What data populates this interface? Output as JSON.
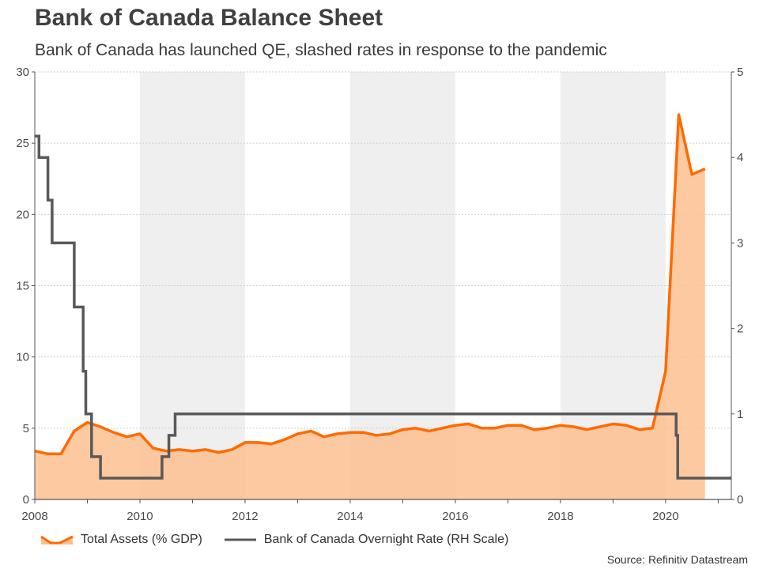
{
  "title": "Bank of Canada Balance Sheet",
  "subtitle": "Bank of Canada has launched QE, slashed rates in response to the pandemic",
  "source": "Source: Refinitiv Datastream",
  "colors": {
    "assets_line": "#ff6a00",
    "assets_fill": "#fdbf91",
    "rate_line": "#595959",
    "shade": "#efefef",
    "grid": "#cfcfcf"
  },
  "chart_data": {
    "type": "area",
    "title": "Bank of Canada Balance Sheet",
    "xlim": [
      2008,
      2021.25
    ],
    "ylim_left": [
      0,
      30
    ],
    "ylim_right": [
      0,
      5
    ],
    "x_ticks": [
      "2008",
      "2010",
      "2012",
      "2014",
      "2016",
      "2018",
      "2020"
    ],
    "y_ticks_left": [
      "0",
      "5",
      "10",
      "15",
      "20",
      "25",
      "30"
    ],
    "y_ticks_right": [
      "0",
      "1",
      "2",
      "3",
      "4",
      "5"
    ],
    "shaded_periods": [
      [
        2010,
        2012
      ],
      [
        2014,
        2016
      ],
      [
        2018,
        2020
      ]
    ],
    "legend": [
      "Total Assets (% GDP)",
      "Bank of Canada Overnight Rate (RH Scale)"
    ],
    "series": [
      {
        "name": "Total Assets (% GDP)",
        "axis": "left",
        "type": "area",
        "x": [
          2008.0,
          2008.25,
          2008.5,
          2008.75,
          2009.0,
          2009.25,
          2009.5,
          2009.75,
          2010.0,
          2010.25,
          2010.5,
          2010.75,
          2011.0,
          2011.25,
          2011.5,
          2011.75,
          2012.0,
          2012.25,
          2012.5,
          2012.75,
          2013.0,
          2013.25,
          2013.5,
          2013.75,
          2014.0,
          2014.25,
          2014.5,
          2014.75,
          2015.0,
          2015.25,
          2015.5,
          2015.75,
          2016.0,
          2016.25,
          2016.5,
          2016.75,
          2017.0,
          2017.25,
          2017.5,
          2017.75,
          2018.0,
          2018.25,
          2018.5,
          2018.75,
          2019.0,
          2019.25,
          2019.5,
          2019.75,
          2020.0,
          2020.25,
          2020.5,
          2020.75
        ],
        "values": [
          3.4,
          3.2,
          3.2,
          4.8,
          5.4,
          5.1,
          4.7,
          4.4,
          4.6,
          3.6,
          3.4,
          3.5,
          3.4,
          3.5,
          3.3,
          3.5,
          4.0,
          4.0,
          3.9,
          4.2,
          4.6,
          4.8,
          4.4,
          4.6,
          4.7,
          4.7,
          4.5,
          4.6,
          4.9,
          5.0,
          4.8,
          5.0,
          5.2,
          5.3,
          5.0,
          5.0,
          5.2,
          5.2,
          4.9,
          5.0,
          5.2,
          5.1,
          4.9,
          5.1,
          5.3,
          5.2,
          4.9,
          5.0,
          9.0,
          27.0,
          22.8,
          23.2
        ]
      },
      {
        "name": "Bank of Canada Overnight Rate (RH Scale)",
        "axis": "right",
        "type": "step",
        "x": [
          2008.0,
          2008.08,
          2008.25,
          2008.33,
          2008.75,
          2008.8,
          2008.92,
          2008.97,
          2009.08,
          2009.25,
          2009.33,
          2010.42,
          2010.55,
          2010.67,
          2020.2,
          2020.23,
          2020.28,
          2021.25
        ],
        "values": [
          4.25,
          4.0,
          3.5,
          3.0,
          2.25,
          2.25,
          1.5,
          1.0,
          0.5,
          0.25,
          0.25,
          0.5,
          0.75,
          1.0,
          0.75,
          0.25,
          0.25,
          0.25
        ]
      }
    ]
  }
}
